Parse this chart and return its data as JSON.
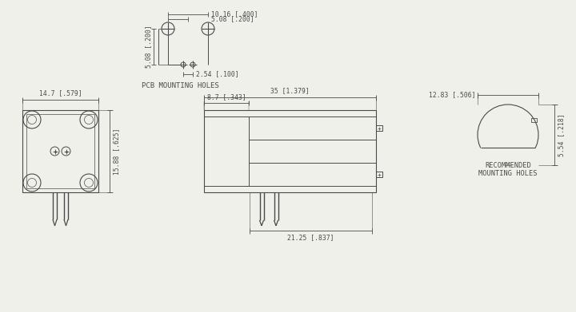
{
  "bg_color": "#f0f0eb",
  "line_color": "#4a4a4a",
  "dim_color": "#4a4a4a",
  "font_size_dim": 5.8,
  "font_size_label": 6.2,
  "pcb_holes": {
    "label": "PCB MOUNTING HOLES",
    "dim_10_16": "10.16 [.400]",
    "dim_5_08_h": "5.08 [.200]",
    "dim_5_08_v": "5.08 [.200]",
    "dim_2_54": "2.54 [.100]"
  },
  "front_view": {
    "width_dim": "14.7 [.579]",
    "height_dim": "15.88 [.625]"
  },
  "side_view": {
    "dim_35": "35 [1.379]",
    "dim_8_7": "8.7 [.343]",
    "dim_21_25": "21.25 [.837]"
  },
  "end_view": {
    "dim_12_83": "12.83 [.506]",
    "dim_5_54": "5.54 [.218]",
    "label": "RECOMMENDED\nMOUNTING HOLES"
  }
}
